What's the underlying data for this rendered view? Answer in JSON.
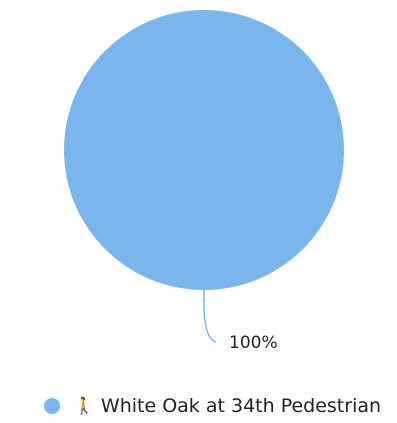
{
  "chart_data": {
    "type": "pie",
    "series": [
      {
        "name": "White Oak at 34th Pedestrian",
        "values": [
          100
        ],
        "percent_labels": [
          "100%"
        ]
      }
    ],
    "legend_placement": "bottom",
    "colors": {
      "slice": "#7ab6ed",
      "leader_line": "#7ab6ed"
    }
  },
  "legend": {
    "items": [
      {
        "icon": "pedestrian-icon",
        "label": "White Oak at 34th Pedestrian",
        "color": "#7ab6ed"
      }
    ]
  }
}
